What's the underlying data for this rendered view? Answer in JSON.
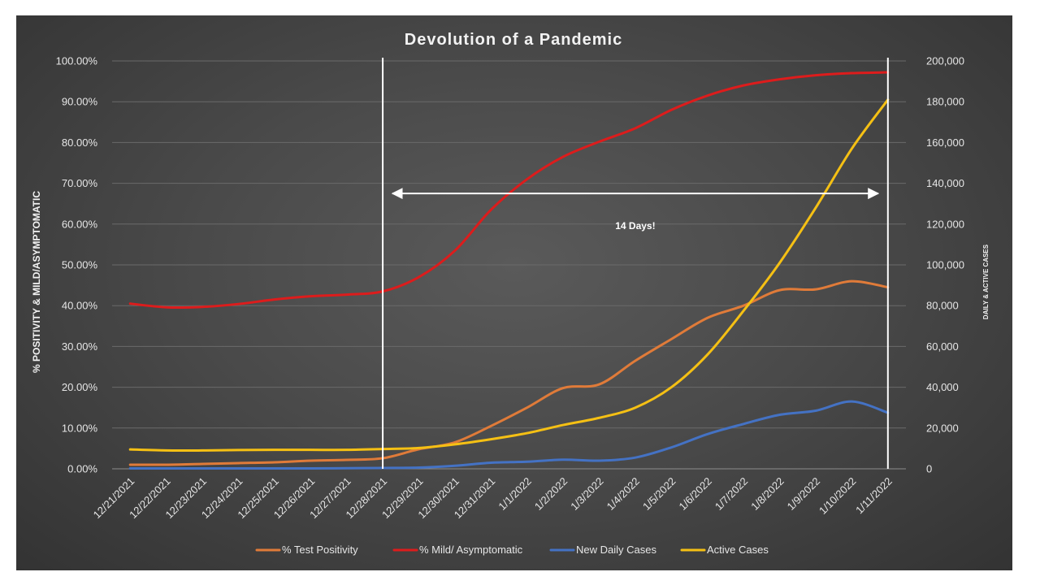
{
  "chart_data": {
    "type": "line",
    "title": "Devolution of a Pandemic",
    "categories": [
      "12/21/2021",
      "12/22/2021",
      "12/23/2021",
      "12/24/2021",
      "12/25/2021",
      "12/26/2021",
      "12/27/2021",
      "12/28/2021",
      "12/29/2021",
      "12/30/2021",
      "12/31/2021",
      "1/1/2022",
      "1/2/2022",
      "1/3/2022",
      "1/4/2022",
      "1/5/2022",
      "1/6/2022",
      "1/7/2022",
      "1/8/2022",
      "1/9/2022",
      "1/10/2022",
      "1/11/2022"
    ],
    "y_left": {
      "label": "% POSITIVITY & MILD/ASYMPTOMATIC",
      "range": [
        0,
        100
      ],
      "ticks": [
        "0.00%",
        "10.00%",
        "20.00%",
        "30.00%",
        "40.00%",
        "50.00%",
        "60.00%",
        "70.00%",
        "80.00%",
        "90.00%",
        "100.00%"
      ]
    },
    "y_right": {
      "label": "DAILY & ACTIVE CASES",
      "range": [
        0,
        200000
      ],
      "ticks": [
        "0",
        "20,000",
        "40,000",
        "60,000",
        "80,000",
        "100,000",
        "120,000",
        "140,000",
        "160,000",
        "180,000",
        "200,000"
      ]
    },
    "series": [
      {
        "name": "% Test Positivity",
        "axis": "left",
        "color": "#e07b39",
        "values": [
          1.0,
          1.0,
          1.2,
          1.4,
          1.6,
          2.0,
          2.2,
          2.6,
          4.8,
          6.5,
          10.5,
          15.0,
          19.8,
          20.7,
          26.5,
          31.8,
          37.0,
          40.0,
          43.8,
          44.0,
          46.0,
          44.5
        ]
      },
      {
        "name": "% Mild/ Asymptomatic",
        "axis": "left",
        "color": "#dd1c1c",
        "values": [
          40.5,
          39.6,
          39.7,
          40.4,
          41.5,
          42.3,
          42.7,
          43.5,
          47.0,
          53.5,
          63.5,
          71.0,
          76.5,
          80.2,
          83.5,
          88.0,
          91.5,
          94.0,
          95.5,
          96.5,
          97.0,
          97.2
        ]
      },
      {
        "name": "New Daily Cases",
        "axis": "right",
        "color": "#4472c4",
        "values": [
          200,
          200,
          200,
          200,
          200,
          200,
          300,
          400,
          600,
          1500,
          3000,
          3500,
          4500,
          4000,
          5500,
          10500,
          17000,
          22000,
          26500,
          28500,
          33000,
          27500
        ]
      },
      {
        "name": "Active Cases",
        "axis": "right",
        "color": "#f5c014",
        "values": [
          9500,
          9000,
          9000,
          9200,
          9300,
          9300,
          9300,
          9700,
          10200,
          12000,
          14500,
          17500,
          21500,
          25000,
          30000,
          40000,
          56000,
          77500,
          101000,
          128000,
          157000,
          181000
        ]
      }
    ],
    "vertical_lines": [
      "12/28/2021",
      "1/11/2022"
    ],
    "annotation": {
      "text": "14 Days!",
      "from": "12/28/2021",
      "to": "1/11/2022",
      "y": 67.5
    },
    "grid": true,
    "legend": "bottom"
  }
}
